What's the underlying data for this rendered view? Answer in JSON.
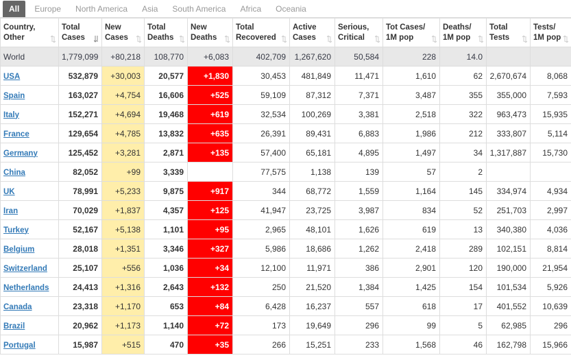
{
  "tabs": [
    "All",
    "Europe",
    "North America",
    "Asia",
    "South America",
    "Africa",
    "Oceania"
  ],
  "active_tab": 0,
  "table": {
    "headers": [
      [
        "Country,",
        "Other"
      ],
      [
        "Total",
        "Cases"
      ],
      [
        "New",
        "Cases"
      ],
      [
        "Total",
        "Deaths"
      ],
      [
        "New",
        "Deaths"
      ],
      [
        "Total",
        "Recovered"
      ],
      [
        "Active",
        "Cases"
      ],
      [
        "Serious,",
        "Critical"
      ],
      [
        "Tot Cases/",
        "1M pop"
      ],
      [
        "Deaths/",
        "1M pop"
      ],
      [
        "Total",
        "Tests"
      ],
      [
        "Tests/",
        "1M pop"
      ]
    ],
    "total_row": [
      "World",
      "1,779,099",
      "+80,218",
      "108,770",
      "+6,083",
      "402,709",
      "1,267,620",
      "50,584",
      "228",
      "14.0",
      null,
      null
    ],
    "rows": [
      [
        "USA",
        "532,879",
        "+30,003",
        "20,577",
        "+1,830",
        "30,453",
        "481,849",
        "11,471",
        "1,610",
        "62",
        "2,670,674",
        "8,068"
      ],
      [
        "Spain",
        "163,027",
        "+4,754",
        "16,606",
        "+525",
        "59,109",
        "87,312",
        "7,371",
        "3,487",
        "355",
        "355,000",
        "7,593"
      ],
      [
        "Italy",
        "152,271",
        "+4,694",
        "19,468",
        "+619",
        "32,534",
        "100,269",
        "3,381",
        "2,518",
        "322",
        "963,473",
        "15,935"
      ],
      [
        "France",
        "129,654",
        "+4,785",
        "13,832",
        "+635",
        "26,391",
        "89,431",
        "6,883",
        "1,986",
        "212",
        "333,807",
        "5,114"
      ],
      [
        "Germany",
        "125,452",
        "+3,281",
        "2,871",
        "+135",
        "57,400",
        "65,181",
        "4,895",
        "1,497",
        "34",
        "1,317,887",
        "15,730"
      ],
      [
        "China",
        "82,052",
        "+99",
        "3,339",
        null,
        "77,575",
        "1,138",
        "139",
        "57",
        "2",
        null,
        null
      ],
      [
        "UK",
        "78,991",
        "+5,233",
        "9,875",
        "+917",
        "344",
        "68,772",
        "1,559",
        "1,164",
        "145",
        "334,974",
        "4,934"
      ],
      [
        "Iran",
        "70,029",
        "+1,837",
        "4,357",
        "+125",
        "41,947",
        "23,725",
        "3,987",
        "834",
        "52",
        "251,703",
        "2,997"
      ],
      [
        "Turkey",
        "52,167",
        "+5,138",
        "1,101",
        "+95",
        "2,965",
        "48,101",
        "1,626",
        "619",
        "13",
        "340,380",
        "4,036"
      ],
      [
        "Belgium",
        "28,018",
        "+1,351",
        "3,346",
        "+327",
        "5,986",
        "18,686",
        "1,262",
        "2,418",
        "289",
        "102,151",
        "8,814"
      ],
      [
        "Switzerland",
        "25,107",
        "+556",
        "1,036",
        "+34",
        "12,100",
        "11,971",
        "386",
        "2,901",
        "120",
        "190,000",
        "21,954"
      ],
      [
        "Netherlands",
        "24,413",
        "+1,316",
        "2,643",
        "+132",
        "250",
        "21,520",
        "1,384",
        "1,425",
        "154",
        "101,534",
        "5,926"
      ],
      [
        "Canada",
        "23,318",
        "+1,170",
        "653",
        "+84",
        "6,428",
        "16,237",
        "557",
        "618",
        "17",
        "401,552",
        "10,639"
      ],
      [
        "Brazil",
        "20,962",
        "+1,173",
        "1,140",
        "+72",
        "173",
        "19,649",
        "296",
        "99",
        "5",
        "62,985",
        "296"
      ],
      [
        "Portugal",
        "15,987",
        "+515",
        "470",
        "+35",
        "266",
        "15,251",
        "233",
        "1,568",
        "46",
        "162,798",
        "15,966"
      ]
    ]
  }
}
